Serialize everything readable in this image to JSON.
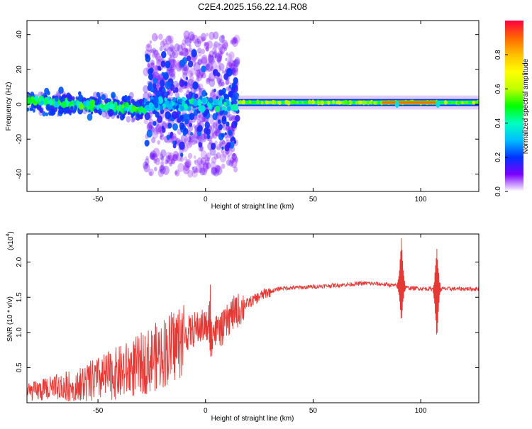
{
  "title": "C2E4.2025.156.22.14.R08",
  "colors": {
    "line": "#e53935",
    "axis": "#000000",
    "spectrogram_band": "#3a2bd6",
    "spectrogram_core": "#00e5ff",
    "spectrogram_peak": "#e53935"
  },
  "top_chart": {
    "type": "heatmap",
    "xlabel": "Height of straight line (km)",
    "ylabel": "Frequency (Hz)",
    "xlim": [
      -83,
      127
    ],
    "ylim": [
      -50,
      48
    ],
    "xticks": [
      -50,
      0,
      50,
      100
    ],
    "yticks": [
      -40,
      -20,
      0,
      20,
      40
    ],
    "colorbar": {
      "label": "Normalized spectral amplitude",
      "range": [
        0,
        1
      ],
      "ticks": [
        "0.0",
        "0.2",
        "0.4",
        "0.6",
        "0.8"
      ],
      "tick_values": [
        0,
        0.2,
        0.4,
        0.6,
        0.8
      ],
      "colormap": [
        "#ffffff",
        "#7b00ff",
        "#0033ff",
        "#00bfff",
        "#00ffbf",
        "#00ff00",
        "#bfff00",
        "#ffff00",
        "#ffbf00",
        "#ff6600",
        "#ff0040"
      ]
    },
    "regions": [
      {
        "x_range": [
          -83,
          -28
        ],
        "freq_center_drift": [
          2,
          -3
        ],
        "spread_hz": 8,
        "note": "scattered blobs"
      },
      {
        "x_range": [
          -28,
          15
        ],
        "freq_center": 0,
        "spread_hz": 38,
        "note": "scattered blobs"
      },
      {
        "x_range": [
          15,
          127
        ],
        "freq_center": 1,
        "band_hz": 4,
        "note": "steady band"
      }
    ],
    "peak_segment": {
      "x_range": [
        82,
        107
      ],
      "freq": 1,
      "amplitude": 0.9
    }
  },
  "bottom_chart": {
    "type": "line",
    "xlabel": "Height of straight line (km)",
    "ylabel": "SNR (10 * v/v)",
    "scale_label": "(x10",
    "scale_exp": "4",
    "scale_close": ")",
    "xlim": [
      -83,
      127
    ],
    "ylim": [
      0,
      2.4
    ],
    "xticks": [
      -50,
      0,
      50,
      100
    ],
    "yticks": [
      0.5,
      1.0,
      1.5,
      2.0
    ],
    "ytick_labels": [
      "0.5",
      "1.0",
      "1.5",
      "2.0"
    ],
    "profile": {
      "x": [
        -83,
        -75,
        -65,
        -55,
        -45,
        -35,
        -25,
        -15,
        -10,
        -5,
        0,
        3,
        8,
        12,
        20,
        28,
        35,
        45,
        55,
        65,
        75,
        85,
        95,
        105,
        115,
        127
      ],
      "y": [
        0.15,
        0.18,
        0.22,
        0.28,
        0.38,
        0.48,
        0.62,
        0.8,
        0.95,
        1.05,
        1.1,
        1.0,
        1.05,
        1.25,
        1.42,
        1.56,
        1.63,
        1.64,
        1.66,
        1.68,
        1.7,
        1.68,
        1.63,
        1.62,
        1.62,
        1.62
      ]
    },
    "spikes": [
      {
        "x": 2,
        "min": 0.6,
        "max": 1.6
      },
      {
        "x": 91,
        "min": 1.15,
        "max": 2.35
      },
      {
        "x": 107.5,
        "min": 0.88,
        "max": 2.2
      }
    ]
  }
}
